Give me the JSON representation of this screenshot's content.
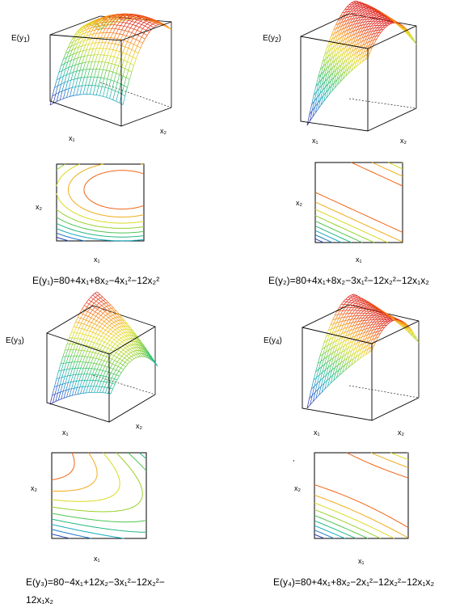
{
  "panels": [
    {
      "id": "p1",
      "z_label": {
        "base": "E(y",
        "sub": "1",
        "tail": ")"
      },
      "x1_label": "x₁",
      "x2_label": "x₂",
      "eq_line1": "E(y₁)=80+4x₁+8x₂−4x₁²−12x₂²",
      "eq_line2": "",
      "coef": {
        "c": 80,
        "b1": 4,
        "b2": 8,
        "b11": -4,
        "b22": -12,
        "b12": 0
      }
    },
    {
      "id": "p2",
      "z_label": {
        "base": "E(y",
        "sub": "2",
        "tail": ")"
      },
      "x1_label": "x₁",
      "x2_label": "x₂",
      "eq_line1": "E(y₂)=80+4x₁+8x₂−3x₁²−12x₂²−12x₁x₂",
      "eq_line2": "",
      "coef": {
        "c": 80,
        "b1": 4,
        "b2": 8,
        "b11": -3,
        "b22": -12,
        "b12": -12
      }
    },
    {
      "id": "p3",
      "z_label": {
        "base": "E(y",
        "sub": "3",
        "tail": ")"
      },
      "x1_label": "x₁",
      "x2_label": "x₂",
      "eq_line1": "E(y₃)=80−4x₁+12x₂−3x₁²−12x₂²−",
      "eq_line2": "12x₁x₂",
      "coef": {
        "c": 80,
        "b1": -4,
        "b2": 12,
        "b11": -3,
        "b22": -12,
        "b12": -12
      }
    },
    {
      "id": "p4",
      "z_label": {
        "base": "E(y",
        "sub": "4",
        "tail": ")"
      },
      "x1_label": "x₁",
      "x2_label": "x₂",
      "eq_line1": "E(y₄)=80+4x₁+8x₂−2x₁²−12x₂²−12x₁x₂",
      "eq_line2": "",
      "coef": {
        "c": 80,
        "b1": 4,
        "b2": 8,
        "b11": -2,
        "b22": -12,
        "b12": -12
      }
    }
  ],
  "stray_mark": ","
}
